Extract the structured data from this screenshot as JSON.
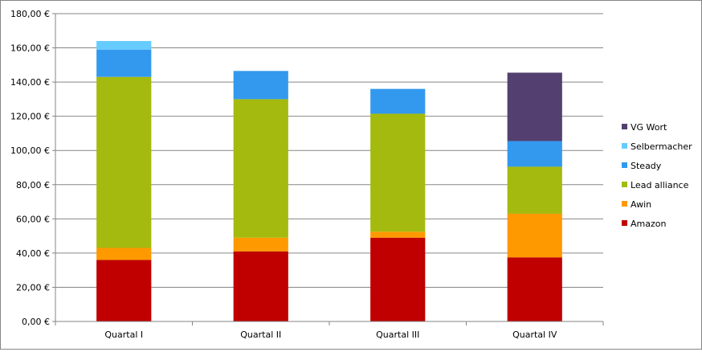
{
  "chart_data": {
    "type": "bar",
    "stacked": true,
    "categories": [
      "Quartal I",
      "Quartal II",
      "Quartal III",
      "Quartal IV"
    ],
    "series": [
      {
        "name": "Amazon",
        "color": "#C00000",
        "values": [
          36,
          41,
          49,
          37.5
        ]
      },
      {
        "name": "Awin",
        "color": "#FF9900",
        "values": [
          7,
          8,
          3.5,
          25.5
        ]
      },
      {
        "name": "Lead alliance",
        "color": "#A5BA0E",
        "values": [
          100,
          81,
          69,
          27.5
        ]
      },
      {
        "name": "Steady",
        "color": "#3399EE",
        "values": [
          16,
          16.5,
          14.5,
          15
        ]
      },
      {
        "name": "Selbermacher",
        "color": "#66CCFF",
        "values": [
          5,
          0,
          0,
          0
        ]
      },
      {
        "name": "VG Wort",
        "color": "#544070",
        "values": [
          0,
          0,
          0,
          40
        ]
      }
    ],
    "ylim": [
      0,
      180
    ],
    "yticks": [
      0,
      20,
      40,
      60,
      80,
      100,
      120,
      140,
      160,
      180
    ],
    "ytick_labels": [
      "0,00 €",
      "20,00 €",
      "40,00 €",
      "60,00 €",
      "80,00 €",
      "100,00 €",
      "120,00 €",
      "140,00 €",
      "160,00 €",
      "180,00 €"
    ],
    "grid": true,
    "legend_position": "right",
    "legend_order": [
      "VG Wort",
      "Selbermacher",
      "Steady",
      "Lead alliance",
      "Awin",
      "Amazon"
    ],
    "title": "",
    "xlabel": "",
    "ylabel": ""
  }
}
